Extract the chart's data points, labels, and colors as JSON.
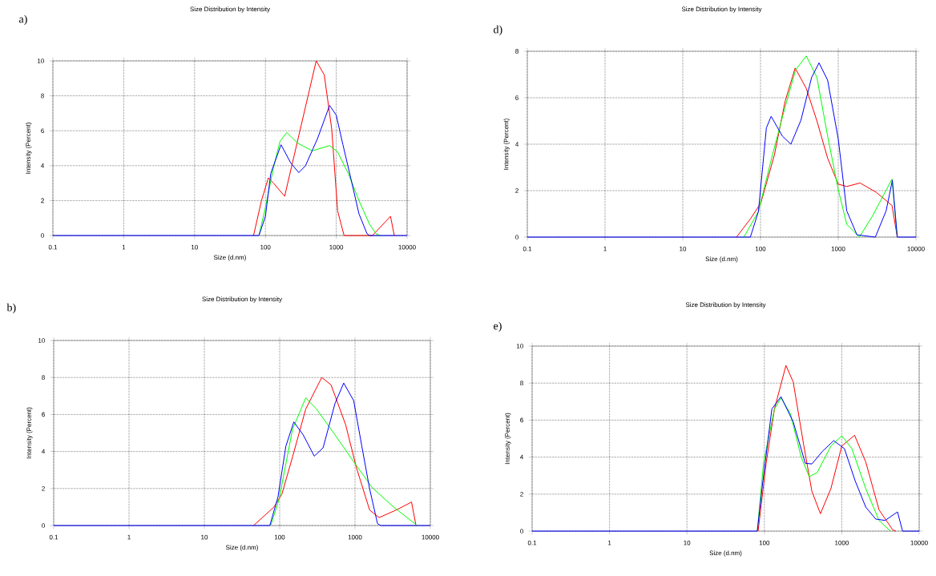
{
  "chart_data": [
    {
      "type": "line",
      "title": "Size Distribution by Intensity",
      "xlabel": "Size (d.nm)",
      "ylabel": "Intensity (Percent)",
      "annotations": [
        "a)"
      ],
      "log": "x",
      "grid": true,
      "xlim": [
        0.1,
        10000
      ],
      "ylim": [
        0,
        10
      ],
      "xticks": [
        0.1,
        1,
        10,
        100,
        1000,
        10000
      ],
      "yticks": [
        0,
        2,
        4,
        6,
        8,
        10
      ],
      "series": [
        {
          "color": "#ff0000",
          "x": [
            68,
            88,
            110,
            130,
            187,
            521,
            677,
            863,
            1046,
            1290,
            3240,
            5830,
            6600
          ],
          "values": [
            0,
            2,
            3.3,
            3.0,
            2.25,
            10,
            9.2,
            6.1,
            1.4,
            0,
            0,
            1.1,
            0
          ]
        },
        {
          "color": "#00ff00",
          "x": [
            81,
            100,
            130,
            161,
            200,
            283,
            458,
            805,
            1040,
            1480,
            2090,
            2950,
            3660,
            4170
          ],
          "values": [
            0,
            1.6,
            3.9,
            5.4,
            5.9,
            5.3,
            4.85,
            5.15,
            4.8,
            3.55,
            2.0,
            0.65,
            0.1,
            0
          ]
        },
        {
          "color": "#0000ff",
          "x": [
            0.1,
            81,
            100,
            119,
            166,
            228,
            296,
            368,
            544,
            805,
            998,
            1242,
            1610,
            2090,
            2720,
            2970,
            10000
          ],
          "values": [
            0,
            0,
            1.1,
            3.55,
            5.2,
            4.15,
            3.6,
            4.0,
            5.55,
            7.45,
            6.9,
            5.2,
            3.25,
            1.25,
            0.1,
            0,
            0
          ]
        }
      ]
    },
    {
      "type": "line",
      "title": "Size Distribution by Intensity",
      "xlabel": "Size (d.nm)",
      "ylabel": "Intensity (Percent)",
      "annotations": [
        "b)"
      ],
      "log": "x",
      "grid": true,
      "xlim": [
        0.1,
        10000
      ],
      "ylim": [
        0,
        10
      ],
      "xticks": [
        0.1,
        1,
        10,
        100,
        1000,
        10000
      ],
      "yticks": [
        0,
        2,
        4,
        6,
        8,
        10
      ],
      "series": [
        {
          "color": "#ff0000",
          "x": [
            45,
            84,
            107,
            148,
            222,
            362,
            481,
            751,
            1040,
            1563,
            2085,
            3540,
            5630,
            6450
          ],
          "values": [
            0,
            1.0,
            1.7,
            3.7,
            6.3,
            8.0,
            7.6,
            5.45,
            3.15,
            0.84,
            0.43,
            0.84,
            1.27,
            0
          ]
        },
        {
          "color": "#00ff00",
          "x": [
            76,
            98,
            148,
            222,
            307,
            543,
            960,
            1690,
            3250,
            6240,
            6600
          ],
          "values": [
            0,
            1.4,
            5.2,
            6.9,
            6.3,
            4.9,
            3.45,
            2.05,
            1.0,
            0.1,
            0
          ]
        },
        {
          "color": "#0000ff",
          "x": [
            0.1,
            74,
            95,
            121,
            154,
            205,
            288,
            377,
            543,
            708,
            960,
            1230,
            1560,
            1990,
            2200,
            10000
          ],
          "values": [
            0,
            0,
            1.55,
            4.3,
            5.6,
            4.9,
            3.75,
            4.2,
            6.6,
            7.7,
            6.75,
            4.3,
            2.0,
            0.1,
            0,
            0
          ]
        }
      ]
    },
    {
      "type": "line",
      "title": "Size Distribution by Intensity",
      "xlabel": "Size (d.nm)",
      "ylabel": "Intensity (Percent)",
      "annotations": [
        "d)"
      ],
      "log": "x",
      "grid": true,
      "xlim": [
        0.1,
        10000
      ],
      "ylim": [
        0,
        8
      ],
      "xticks": [
        0.1,
        1,
        10,
        100,
        1000,
        10000
      ],
      "yticks": [
        0,
        2,
        4,
        6,
        8
      ],
      "series": [
        {
          "color": "#ff0000",
          "x": [
            49,
            74,
            101,
            151,
            207,
            279,
            388,
            532,
            730,
            1000,
            1287,
            1910,
            3080,
            4920,
            5750
          ],
          "values": [
            0,
            0.78,
            1.47,
            3.54,
            5.84,
            7.28,
            6.4,
            5.0,
            3.4,
            2.28,
            2.18,
            2.33,
            1.93,
            1.36,
            0
          ]
        },
        {
          "color": "#00ff00",
          "x": [
            61,
            94,
            139,
            207,
            283,
            388,
            532,
            730,
            1000,
            1287,
            1870,
            2750,
            4920,
            5750
          ],
          "values": [
            0,
            1.1,
            3.4,
            5.6,
            7.2,
            7.8,
            6.87,
            4.35,
            2.05,
            0.55,
            0,
            0.9,
            2.5,
            0
          ]
        },
        {
          "color": "#0000ff",
          "x": [
            0.1,
            74,
            94,
            119,
            137,
            191,
            246,
            331,
            454,
            566,
            730,
            1000,
            1287,
            1740,
            3000,
            4130,
            4970,
            5750,
            10000
          ],
          "values": [
            0,
            0,
            1.1,
            4.7,
            5.2,
            4.35,
            4.0,
            5.03,
            6.87,
            7.5,
            6.76,
            4.23,
            1.13,
            0.1,
            0,
            1.13,
            2.45,
            0,
            0
          ]
        }
      ]
    },
    {
      "type": "line",
      "title": "Size Distribution by Intensity",
      "xlabel": "Size (d.nm)",
      "ylabel": "Intensity (Percent)",
      "annotations": [
        "e)"
      ],
      "log": "x",
      "grid": true,
      "xlim": [
        0.1,
        10000
      ],
      "ylim": [
        0,
        10
      ],
      "xticks": [
        0.1,
        1,
        10,
        100,
        1000,
        10000
      ],
      "yticks": [
        0,
        2,
        4,
        6,
        8,
        10
      ],
      "series": [
        {
          "color": "#ff0000",
          "x": [
            83,
            106,
            135,
            190,
            236,
            324,
            411,
            530,
            724,
            1000,
            1465,
            2040,
            3030,
            4550,
            5000
          ],
          "values": [
            0,
            3.74,
            6.6,
            8.95,
            8.06,
            4.6,
            2.16,
            0.94,
            2.3,
            4.6,
            5.18,
            3.74,
            1.15,
            0.07,
            0
          ]
        },
        {
          "color": "#00ff00",
          "x": [
            81,
            98,
            135,
            164,
            218,
            299,
            380,
            482,
            724,
            1000,
            1352,
            2040,
            3030,
            4260
          ],
          "values": [
            0,
            3.74,
            6.6,
            7.2,
            6.33,
            4.0,
            2.95,
            3.17,
            4.6,
            5.15,
            4.46,
            2.3,
            0.58,
            0
          ]
        },
        {
          "color": "#0000ff",
          "x": [
            0.1,
            81,
            95,
            125,
            164,
            236,
            338,
            411,
            565,
            787,
            1082,
            1486,
            2040,
            2750,
            3630,
            5250,
            6110,
            10000
          ],
          "values": [
            0,
            0,
            2.6,
            6.6,
            7.27,
            5.9,
            3.67,
            3.63,
            4.32,
            4.89,
            4.46,
            2.73,
            1.3,
            0.65,
            0.58,
            1.04,
            0,
            0
          ]
        }
      ]
    }
  ]
}
